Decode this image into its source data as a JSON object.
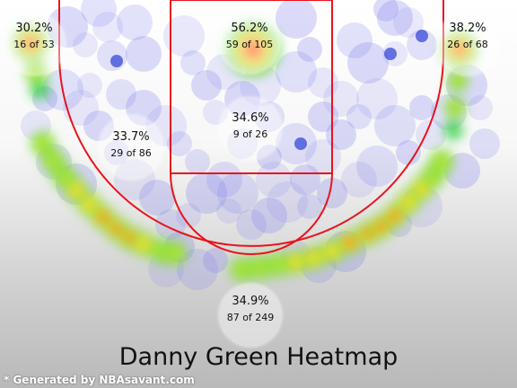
{
  "chart_data": {
    "type": "heatmap",
    "title": "Danny Green Heatmap",
    "zones": [
      {
        "zone": "Left Corner 3",
        "pct": "30.2%",
        "made_of_attempts": "16 of 53"
      },
      {
        "zone": "Restricted Area",
        "pct": "56.2%",
        "made_of_attempts": "59 of 105"
      },
      {
        "zone": "Right Corner 3",
        "pct": "38.2%",
        "made_of_attempts": "26 of 68"
      },
      {
        "zone": "Mid-Range",
        "pct": "33.7%",
        "made_of_attempts": "29 of 86"
      },
      {
        "zone": "In The Paint (Non-RA)",
        "pct": "34.6%",
        "made_of_attempts": "9 of 26"
      },
      {
        "zone": "Above the Break 3",
        "pct": "34.9%",
        "made_of_attempts": "87 of 249"
      }
    ],
    "hot_spots": [
      "left-corner",
      "restricted-area",
      "right-corner",
      "left-wing-three",
      "right-wing-three"
    ],
    "colors": {
      "court_lines": "#e8141c",
      "cold": "#6060e0",
      "hot": "#ff3010",
      "zone_bubble": "#ffffff"
    }
  },
  "footnote": "* Generated by NBAsavant.com"
}
